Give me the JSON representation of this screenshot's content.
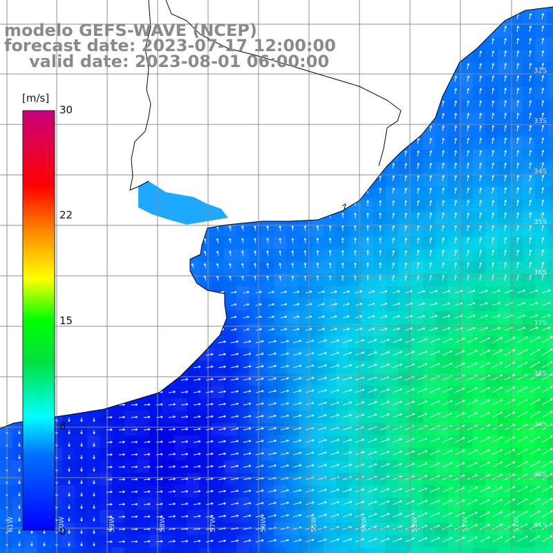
{
  "header": {
    "line1": "modelo GEFS-WAVE (NCEP)",
    "line2": "forecast date: 2023-07-17 12:00:00",
    "line3": "valid date: 2023-08-01 06:00:00"
  },
  "colorbar": {
    "unit": "[m/s]",
    "ticks": [
      "30",
      "22",
      "15",
      "8",
      "0"
    ],
    "colors": [
      "#0000ff",
      "#00a0ff",
      "#00ffff",
      "#00ff00",
      "#ffff00",
      "#ff8000",
      "#ff0000",
      "#c80078"
    ]
  },
  "grid": {
    "lat_labels": [
      "32S",
      "33S",
      "34S",
      "35S",
      "36S",
      "37S",
      "38S",
      "39S",
      "40S",
      "41S"
    ],
    "lon_labels": [
      "61W",
      "60W",
      "59W",
      "58W",
      "57W",
      "56W",
      "55W",
      "54W",
      "53W",
      "52W",
      "51W"
    ]
  },
  "colors": {
    "land": "#ffffff",
    "grid_line": "#8c8c8c",
    "coast": "#000000",
    "arrow": "#ffffff",
    "title": "#8a8a8a"
  }
}
